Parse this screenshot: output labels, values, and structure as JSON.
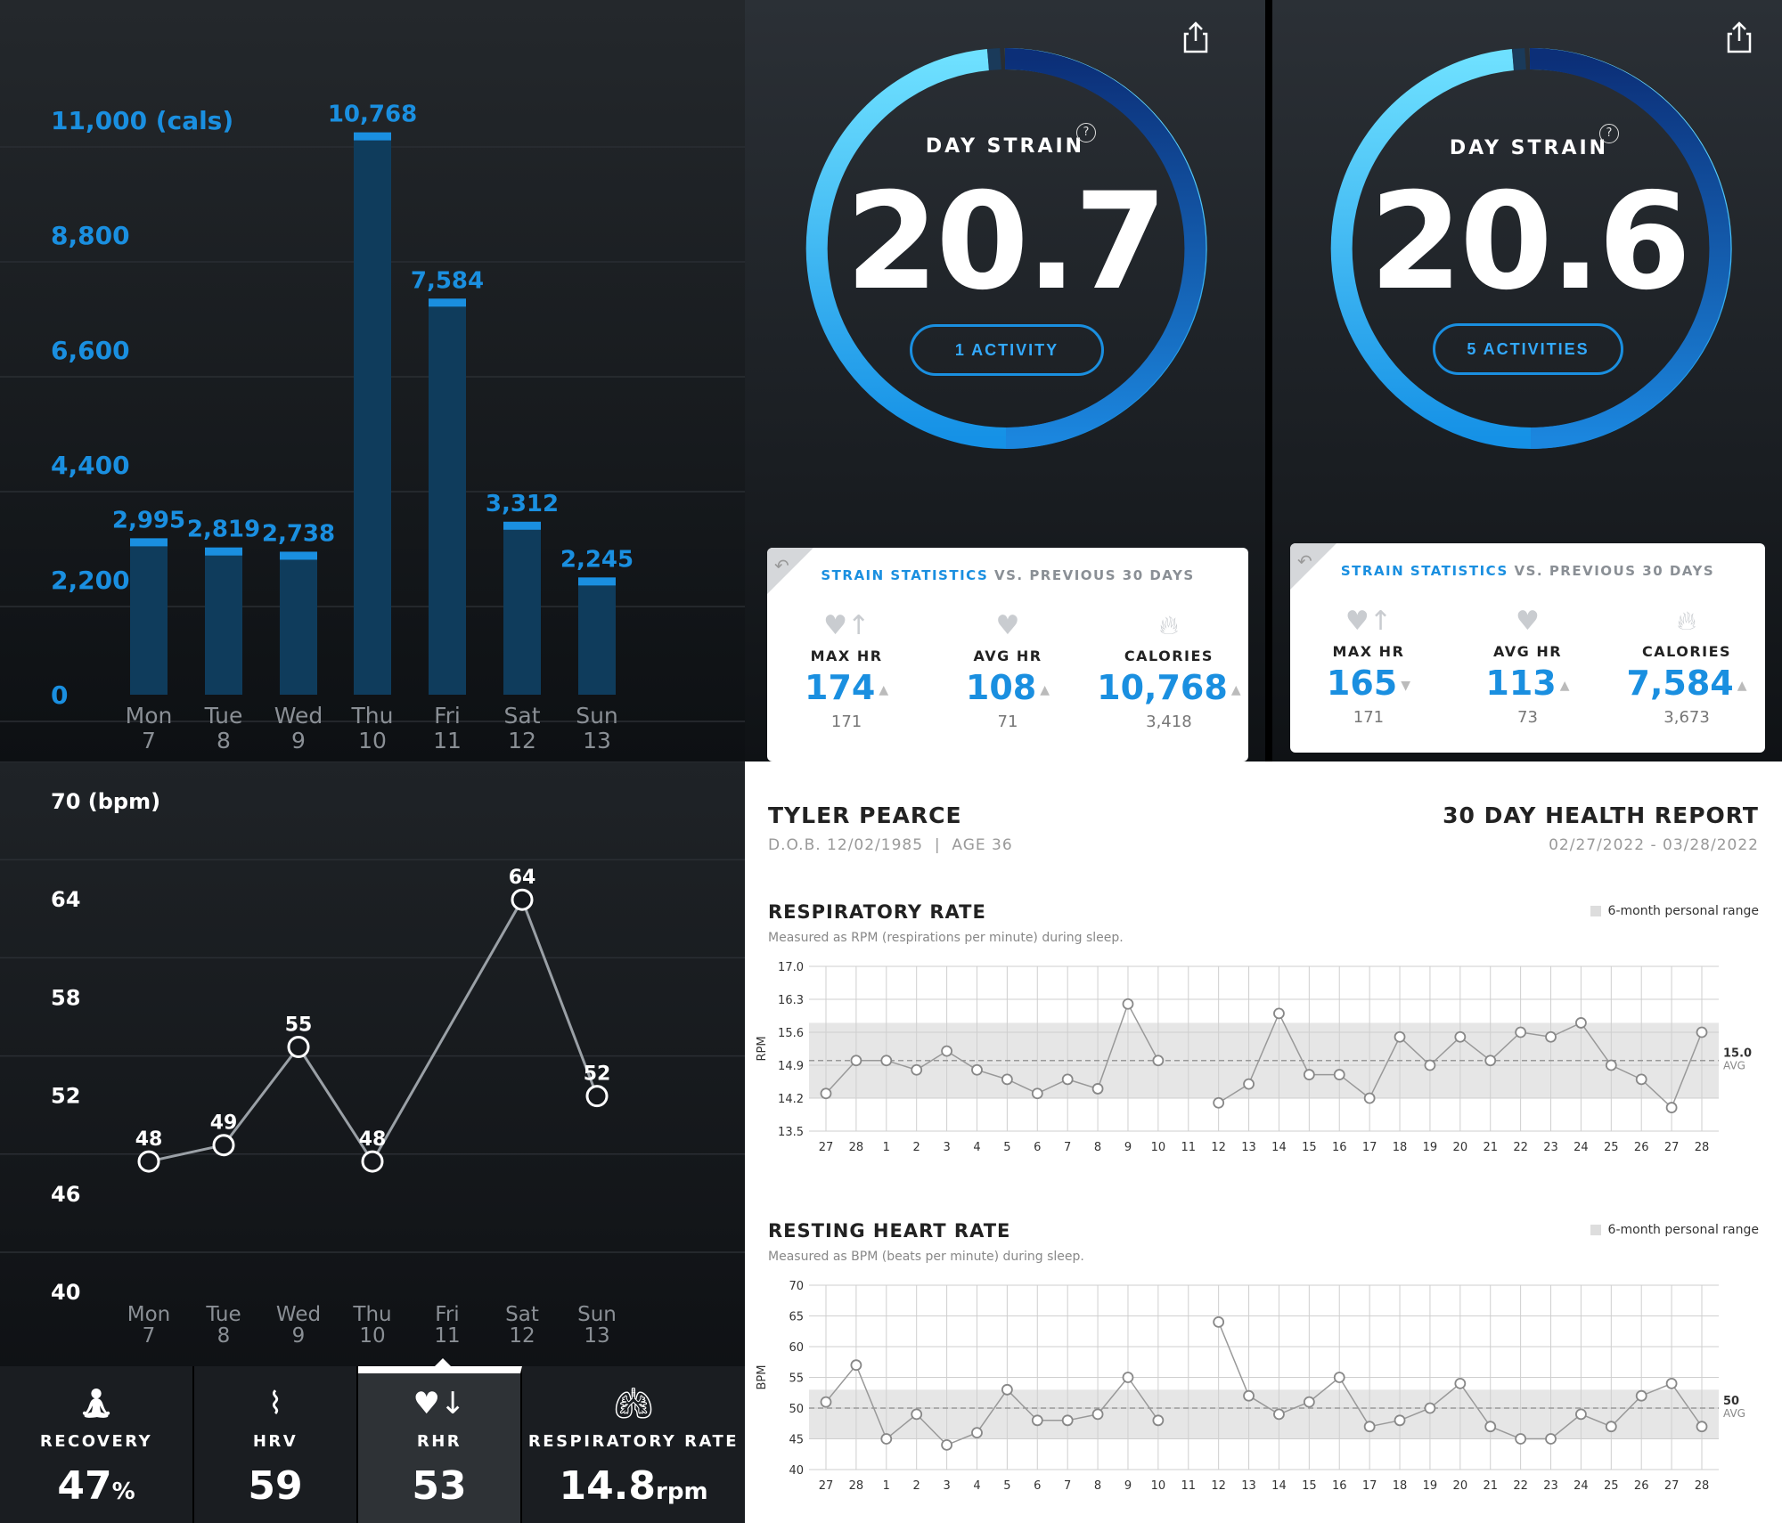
{
  "calories": {
    "chart_data": {
      "type": "bar",
      "title": "",
      "ylabel_top": "11,000 (cals)",
      "y_ticks": [
        "11,000 (cals)",
        "8,800",
        "6,600",
        "4,400",
        "2,200",
        "0"
      ],
      "ylim": [
        0,
        11000
      ],
      "categories": [
        [
          "Mon",
          "7"
        ],
        [
          "Tue",
          "8"
        ],
        [
          "Wed",
          "9"
        ],
        [
          "Thu",
          "10"
        ],
        [
          "Fri",
          "11"
        ],
        [
          "Sat",
          "12"
        ],
        [
          "Sun",
          "13"
        ]
      ],
      "values": [
        2995,
        2819,
        2738,
        10768,
        7584,
        3312,
        2245
      ],
      "value_labels": [
        "2,995",
        "2,819",
        "2,738",
        "10,768",
        "7,584",
        "3,312",
        "2,245"
      ]
    }
  },
  "rhr_weekly": {
    "chart_data": {
      "type": "line",
      "y_ticks": [
        "70 (bpm)",
        "64",
        "58",
        "52",
        "46",
        "40"
      ],
      "ylim": [
        40,
        70
      ],
      "categories": [
        [
          "Mon",
          "7"
        ],
        [
          "Tue",
          "8"
        ],
        [
          "Wed",
          "9"
        ],
        [
          "Thu",
          "10"
        ],
        [
          "Fri",
          "11"
        ],
        [
          "Sat",
          "12"
        ],
        [
          "Sun",
          "13"
        ]
      ],
      "points": [
        {
          "x": 0,
          "y": 48
        },
        {
          "x": 1,
          "y": 49
        },
        {
          "x": 2,
          "y": 55
        },
        {
          "x": 3,
          "y": 48
        },
        {
          "x": 5,
          "y": 64
        },
        {
          "x": 6,
          "y": 52
        }
      ]
    }
  },
  "tabs": [
    {
      "label": "RECOVERY",
      "value": "47",
      "unit": "%",
      "icon": "meditation-icon"
    },
    {
      "label": "HRV",
      "value": "59",
      "unit": "",
      "icon": "pulse-icon"
    },
    {
      "label": "RHR",
      "value": "53",
      "unit": "",
      "icon": "heart-down-icon"
    },
    {
      "label": "RESPIRATORY RATE",
      "value": "14.8",
      "unit": "rpm",
      "icon": "lungs-icon"
    }
  ],
  "strain1": {
    "label": "DAY STRAIN",
    "help": "?",
    "value": "20.7",
    "activity_button": "1 ACTIVITY",
    "stats_title_a": "STRAIN STATISTICS",
    "stats_title_b": "VS. PREVIOUS 30 DAYS",
    "stats": [
      {
        "label": "MAX HR",
        "value": "174",
        "prev": "171"
      },
      {
        "label": "AVG HR",
        "value": "108",
        "prev": "71"
      },
      {
        "label": "CALORIES",
        "value": "10,768",
        "prev": "3,418"
      }
    ]
  },
  "strain2": {
    "label": "DAY STRAIN",
    "help": "?",
    "value": "20.6",
    "activity_button": "5 ACTIVITIES",
    "stats_title_a": "STRAIN STATISTICS",
    "stats_title_b": "VS. PREVIOUS 30 DAYS",
    "stats": [
      {
        "label": "MAX HR",
        "value": "165",
        "prev": "171"
      },
      {
        "label": "AVG HR",
        "value": "113",
        "prev": "73"
      },
      {
        "label": "CALORIES",
        "value": "7,584",
        "prev": "3,673"
      }
    ]
  },
  "report": {
    "name": "TYLER PEARCE",
    "dob": "D.O.B. 12/02/1985  |  AGE 36",
    "title": "30 DAY HEALTH REPORT",
    "dates": "02/27/2022 - 03/28/2022",
    "legend": "6-month personal range",
    "x_labels": [
      "27",
      "28",
      "1",
      "2",
      "3",
      "4",
      "5",
      "6",
      "7",
      "8",
      "9",
      "10",
      "11",
      "12",
      "13",
      "14",
      "15",
      "16",
      "17",
      "18",
      "19",
      "20",
      "21",
      "22",
      "23",
      "24",
      "25",
      "26",
      "27",
      "28"
    ],
    "respiratory": {
      "title": "RESPIRATORY RATE",
      "subtitle": "Measured as RPM (respirations per minute) during sleep.",
      "chart_data": {
        "type": "line",
        "ylabel": "RPM",
        "y_ticks": [
          "17.0",
          "16.3",
          "15.6",
          "14.9",
          "14.2",
          "13.5"
        ],
        "ylim": [
          13.5,
          17.0
        ],
        "range": [
          14.2,
          15.8
        ],
        "avg": 15.0,
        "avg_label": "15.0",
        "avg_text": "AVG",
        "values": [
          14.3,
          15.0,
          15.0,
          14.8,
          15.2,
          14.8,
          14.6,
          14.3,
          14.6,
          14.4,
          16.2,
          15.0,
          null,
          14.1,
          14.5,
          16.0,
          14.7,
          14.7,
          14.2,
          15.5,
          14.9,
          15.5,
          15.0,
          15.6,
          15.5,
          15.8,
          14.9,
          14.6,
          14.0,
          15.6
        ]
      }
    },
    "rhr": {
      "title": "RESTING HEART RATE",
      "subtitle": "Measured as BPM (beats per minute) during sleep.",
      "chart_data": {
        "type": "line",
        "ylabel": "BPM",
        "y_ticks": [
          "70",
          "65",
          "60",
          "55",
          "50",
          "45",
          "40"
        ],
        "ylim": [
          40,
          70
        ],
        "range": [
          45,
          53
        ],
        "avg": 50,
        "avg_label": "50",
        "avg_text": "AVG",
        "values": [
          51,
          57,
          45,
          49,
          44,
          46,
          53,
          48,
          48,
          49,
          55,
          48,
          null,
          64,
          52,
          49,
          51,
          55,
          47,
          48,
          50,
          54,
          47,
          45,
          45,
          49,
          47,
          52,
          54,
          47
        ]
      }
    }
  }
}
